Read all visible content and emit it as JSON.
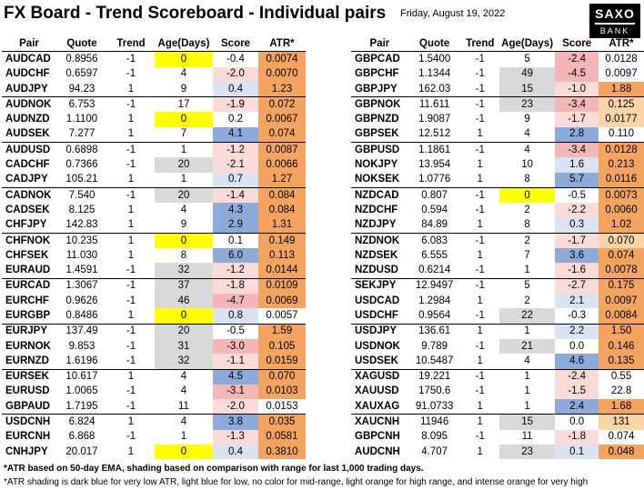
{
  "header": {
    "title": "FX Board - Trend Scoreboard - Individual pairs",
    "date": "Friday, August 19, 2022",
    "logo_line1": "SAXO",
    "logo_line2": "BANK"
  },
  "columns": [
    "Pair",
    "Quote",
    "Trend",
    "Age(Days)",
    "Score",
    "ATR*"
  ],
  "colors": {
    "age_highlight": "#ffff00",
    "age_gray": "#d9d9d9",
    "score_blue_strong": "#8eaadb",
    "score_blue_light": "#dae3f3",
    "score_red_light": "#fadbd8",
    "score_red_strong": "#f4b6b6",
    "atr_orange": "#f4a460",
    "atr_light_orange": "#fbd5a8"
  },
  "left_table": [
    {
      "pair": "AUDCAD",
      "quote": "0.8956",
      "trend": "-1",
      "age": "0",
      "score": "-0.4",
      "atr": "0.0074",
      "age_c": "y",
      "score_c": "",
      "atr_c": "o",
      "group_start": true
    },
    {
      "pair": "AUDCHF",
      "quote": "0.6597",
      "trend": "-1",
      "age": "4",
      "score": "-2.0",
      "atr": "0.0070",
      "age_c": "",
      "score_c": "rl",
      "atr_c": "o"
    },
    {
      "pair": "AUDJPY",
      "quote": "94.23",
      "trend": "1",
      "age": "9",
      "score": "0.4",
      "atr": "1.23",
      "age_c": "",
      "score_c": "bl",
      "atr_c": "o"
    },
    {
      "pair": "AUDNOK",
      "quote": "6.753",
      "trend": "-1",
      "age": "17",
      "score": "-1.9",
      "atr": "0.072",
      "age_c": "",
      "score_c": "rl",
      "atr_c": "o",
      "group_start": true
    },
    {
      "pair": "AUDNZD",
      "quote": "1.1100",
      "trend": "1",
      "age": "0",
      "score": "0.2",
      "atr": "0.0067",
      "age_c": "y",
      "score_c": "",
      "atr_c": "o"
    },
    {
      "pair": "AUDSEK",
      "quote": "7.277",
      "trend": "1",
      "age": "7",
      "score": "4.1",
      "atr": "0.074",
      "age_c": "",
      "score_c": "bs",
      "atr_c": "o"
    },
    {
      "pair": "AUDUSD",
      "quote": "0.6898",
      "trend": "-1",
      "age": "1",
      "score": "-1.2",
      "atr": "0.0087",
      "age_c": "",
      "score_c": "rl",
      "atr_c": "o",
      "group_start": true
    },
    {
      "pair": "CADCHF",
      "quote": "0.7366",
      "trend": "-1",
      "age": "20",
      "score": "-2.1",
      "atr": "0.0066",
      "age_c": "g",
      "score_c": "rl",
      "atr_c": "o"
    },
    {
      "pair": "CADJPY",
      "quote": "105.21",
      "trend": "1",
      "age": "1",
      "score": "0.7",
      "atr": "1.27",
      "age_c": "",
      "score_c": "bl",
      "atr_c": "o"
    },
    {
      "pair": "CADNOK",
      "quote": "7.540",
      "trend": "-1",
      "age": "20",
      "score": "-1.4",
      "atr": "0.084",
      "age_c": "g",
      "score_c": "rl",
      "atr_c": "o",
      "group_start": true
    },
    {
      "pair": "CADSEK",
      "quote": "8.125",
      "trend": "1",
      "age": "4",
      "score": "4.3",
      "atr": "0.084",
      "age_c": "",
      "score_c": "bs",
      "atr_c": "o"
    },
    {
      "pair": "CHFJPY",
      "quote": "142.83",
      "trend": "1",
      "age": "9",
      "score": "2.9",
      "atr": "1.31",
      "age_c": "",
      "score_c": "bs",
      "atr_c": "o"
    },
    {
      "pair": "CHFNOK",
      "quote": "10.235",
      "trend": "1",
      "age": "0",
      "score": "0.1",
      "atr": "0.149",
      "age_c": "y",
      "score_c": "",
      "atr_c": "o",
      "group_start": true
    },
    {
      "pair": "CHFSEK",
      "quote": "11.030",
      "trend": "1",
      "age": "8",
      "score": "6.0",
      "atr": "0.113",
      "age_c": "",
      "score_c": "bs",
      "atr_c": "o"
    },
    {
      "pair": "EURAUD",
      "quote": "1.4591",
      "trend": "-1",
      "age": "32",
      "score": "-1.2",
      "atr": "0.0144",
      "age_c": "g",
      "score_c": "rl",
      "atr_c": "o"
    },
    {
      "pair": "EURCAD",
      "quote": "1.3067",
      "trend": "-1",
      "age": "37",
      "score": "-1.8",
      "atr": "0.0109",
      "age_c": "g",
      "score_c": "rl",
      "atr_c": "o",
      "group_start": true
    },
    {
      "pair": "EURCHF",
      "quote": "0.9626",
      "trend": "-1",
      "age": "46",
      "score": "-4.7",
      "atr": "0.0069",
      "age_c": "g",
      "score_c": "rs",
      "atr_c": "o"
    },
    {
      "pair": "EURGBP",
      "quote": "0.8486",
      "trend": "1",
      "age": "0",
      "score": "0.8",
      "atr": "0.0057",
      "age_c": "y",
      "score_c": "bl",
      "atr_c": ""
    },
    {
      "pair": "EURJPY",
      "quote": "137.49",
      "trend": "-1",
      "age": "20",
      "score": "-0.5",
      "atr": "1.59",
      "age_c": "g",
      "score_c": "",
      "atr_c": "o",
      "group_start": true
    },
    {
      "pair": "EURNOK",
      "quote": "9.853",
      "trend": "-1",
      "age": "31",
      "score": "-3.0",
      "atr": "0.105",
      "age_c": "g",
      "score_c": "rs",
      "atr_c": "o"
    },
    {
      "pair": "EURNZD",
      "quote": "1.6196",
      "trend": "-1",
      "age": "32",
      "score": "-1.1",
      "atr": "0.0159",
      "age_c": "g",
      "score_c": "rl",
      "atr_c": "o"
    },
    {
      "pair": "EURSEK",
      "quote": "10.617",
      "trend": "1",
      "age": "4",
      "score": "4.5",
      "atr": "0.070",
      "age_c": "",
      "score_c": "bs",
      "atr_c": "o",
      "group_start": true
    },
    {
      "pair": "EURUSD",
      "quote": "1.0065",
      "trend": "-1",
      "age": "4",
      "score": "-3.1",
      "atr": "0.0103",
      "age_c": "",
      "score_c": "rs",
      "atr_c": "o"
    },
    {
      "pair": "GBPAUD",
      "quote": "1.7195",
      "trend": "-1",
      "age": "11",
      "score": "-2.0",
      "atr": "0.0153",
      "age_c": "",
      "score_c": "rl",
      "atr_c": ""
    },
    {
      "pair": "USDCNH",
      "quote": "6.824",
      "trend": "1",
      "age": "4",
      "score": "3.8",
      "atr": "0.035",
      "age_c": "",
      "score_c": "bs",
      "atr_c": "o",
      "group_start": true
    },
    {
      "pair": "EURCNH",
      "quote": "6.868",
      "trend": "-1",
      "age": "1",
      "score": "-1.3",
      "atr": "0.0581",
      "age_c": "",
      "score_c": "rl",
      "atr_c": "o"
    },
    {
      "pair": "CNHJPY",
      "quote": "20.017",
      "trend": "1",
      "age": "0",
      "score": "0.4",
      "atr": "0.3810",
      "age_c": "y",
      "score_c": "bl",
      "atr_c": "o"
    }
  ],
  "right_table": [
    {
      "pair": "GBPCAD",
      "quote": "1.5400",
      "trend": "-1",
      "age": "5",
      "score": "-2.4",
      "atr": "0.0128",
      "age_c": "",
      "score_c": "rs",
      "atr_c": "",
      "group_start": true
    },
    {
      "pair": "GBPCHF",
      "quote": "1.1344",
      "trend": "-1",
      "age": "49",
      "score": "-4.5",
      "atr": "0.0097",
      "age_c": "g",
      "score_c": "rs",
      "atr_c": ""
    },
    {
      "pair": "GBPJPY",
      "quote": "162.03",
      "trend": "-1",
      "age": "15",
      "score": "-1.0",
      "atr": "1.88",
      "age_c": "g",
      "score_c": "rl",
      "atr_c": "o"
    },
    {
      "pair": "GBPNOK",
      "quote": "11.611",
      "trend": "-1",
      "age": "23",
      "score": "-3.4",
      "atr": "0.125",
      "age_c": "g",
      "score_c": "rs",
      "atr_c": "lo",
      "group_start": true
    },
    {
      "pair": "GBPNZD",
      "quote": "1.9087",
      "trend": "-1",
      "age": "9",
      "score": "-1.7",
      "atr": "0.0177",
      "age_c": "",
      "score_c": "rl",
      "atr_c": "lo"
    },
    {
      "pair": "GBPSEK",
      "quote": "12.512",
      "trend": "1",
      "age": "4",
      "score": "2.8",
      "atr": "0.110",
      "age_c": "",
      "score_c": "bs",
      "atr_c": ""
    },
    {
      "pair": "GBPUSD",
      "quote": "1.1861",
      "trend": "-1",
      "age": "4",
      "score": "-3.4",
      "atr": "0.0128",
      "age_c": "",
      "score_c": "rs",
      "atr_c": "o",
      "group_start": true
    },
    {
      "pair": "NOKJPY",
      "quote": "13.954",
      "trend": "1",
      "age": "10",
      "score": "1.6",
      "atr": "0.213",
      "age_c": "",
      "score_c": "bl",
      "atr_c": "o"
    },
    {
      "pair": "NOKSEK",
      "quote": "1.0776",
      "trend": "1",
      "age": "8",
      "score": "5.7",
      "atr": "0.0116",
      "age_c": "",
      "score_c": "bs",
      "atr_c": "o"
    },
    {
      "pair": "NZDCAD",
      "quote": "0.807",
      "trend": "-1",
      "age": "0",
      "score": "-0.5",
      "atr": "0.0073",
      "age_c": "y",
      "score_c": "",
      "atr_c": "o",
      "group_start": true
    },
    {
      "pair": "NZDCHF",
      "quote": "0.594",
      "trend": "-1",
      "age": "2",
      "score": "-2.2",
      "atr": "0.0060",
      "age_c": "",
      "score_c": "rl",
      "atr_c": "o"
    },
    {
      "pair": "NZDJPY",
      "quote": "84.89",
      "trend": "1",
      "age": "8",
      "score": "0.3",
      "atr": "1.02",
      "age_c": "",
      "score_c": "bl",
      "atr_c": "o"
    },
    {
      "pair": "NZDNOK",
      "quote": "6.083",
      "trend": "-1",
      "age": "2",
      "score": "-1.7",
      "atr": "0.070",
      "age_c": "",
      "score_c": "rl",
      "atr_c": "lo",
      "group_start": true
    },
    {
      "pair": "NZDSEK",
      "quote": "6.555",
      "trend": "1",
      "age": "7",
      "score": "3.6",
      "atr": "0.074",
      "age_c": "",
      "score_c": "bs",
      "atr_c": "o"
    },
    {
      "pair": "NZDUSD",
      "quote": "0.6214",
      "trend": "-1",
      "age": "1",
      "score": "-1.6",
      "atr": "0.0078",
      "age_c": "",
      "score_c": "rl",
      "atr_c": "o"
    },
    {
      "pair": "SEKJPY",
      "quote": "12.9497",
      "trend": "-1",
      "age": "5",
      "score": "-2.7",
      "atr": "0.175",
      "age_c": "",
      "score_c": "rl",
      "atr_c": "o",
      "group_start": true
    },
    {
      "pair": "USDCAD",
      "quote": "1.2984",
      "trend": "1",
      "age": "2",
      "score": "2.1",
      "atr": "0.0097",
      "age_c": "",
      "score_c": "bl",
      "atr_c": "o"
    },
    {
      "pair": "USDCHF",
      "quote": "0.9564",
      "trend": "-1",
      "age": "22",
      "score": "-0.3",
      "atr": "0.0084",
      "age_c": "g",
      "score_c": "",
      "atr_c": "o"
    },
    {
      "pair": "USDJPY",
      "quote": "136.61",
      "trend": "1",
      "age": "1",
      "score": "2.2",
      "atr": "1.50",
      "age_c": "",
      "score_c": "bl",
      "atr_c": "o",
      "group_start": true
    },
    {
      "pair": "USDNOK",
      "quote": "9.789",
      "trend": "-1",
      "age": "21",
      "score": "0.0",
      "atr": "0.146",
      "age_c": "g",
      "score_c": "",
      "atr_c": "o"
    },
    {
      "pair": "USDSEK",
      "quote": "10.5487",
      "trend": "1",
      "age": "4",
      "score": "4.6",
      "atr": "0.135",
      "age_c": "",
      "score_c": "bs",
      "atr_c": "o"
    },
    {
      "pair": "XAGUSD",
      "quote": "19.221",
      "trend": "-1",
      "age": "1",
      "score": "-2.4",
      "atr": "0.55",
      "age_c": "",
      "score_c": "rl",
      "atr_c": "",
      "group_start": true
    },
    {
      "pair": "XAUUSD",
      "quote": "1750.6",
      "trend": "-1",
      "age": "1",
      "score": "-1.5",
      "atr": "22.8",
      "age_c": "",
      "score_c": "rl",
      "atr_c": ""
    },
    {
      "pair": "XAUXAG",
      "quote": "91.0733",
      "trend": "1",
      "age": "1",
      "score": "2.4",
      "atr": "1.68",
      "age_c": "",
      "score_c": "bs",
      "atr_c": "o"
    },
    {
      "pair": "XAUCNH",
      "quote": "11946",
      "trend": "1",
      "age": "15",
      "score": "0.0",
      "atr": "131",
      "age_c": "g",
      "score_c": "",
      "atr_c": "lo",
      "group_start": true
    },
    {
      "pair": "GBPCNH",
      "quote": "8.095",
      "trend": "-1",
      "age": "11",
      "score": "-1.8",
      "atr": "0.074",
      "age_c": "",
      "score_c": "rl",
      "atr_c": ""
    },
    {
      "pair": "AUDCNH",
      "quote": "4.707",
      "trend": "1",
      "age": "23",
      "score": "0.1",
      "atr": "0.048",
      "age_c": "g",
      "score_c": "bl",
      "atr_c": "o"
    }
  ],
  "footer": {
    "note1": "*ATR based on 50-day EMA, shading based on comparison with range for last 1,000 trading days.",
    "note2": "*ATR shading is dark blue for very low ATR, light blue for low, no color for mid-range, light orange for high range, and intense orange for very high"
  }
}
